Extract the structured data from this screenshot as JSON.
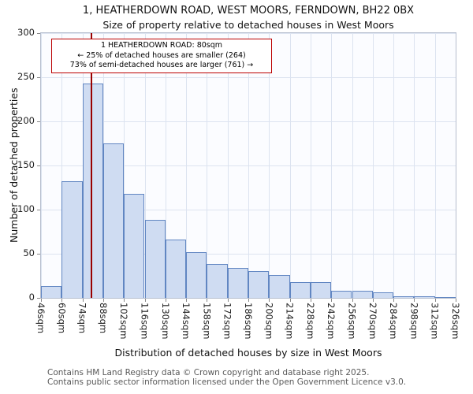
{
  "title": "1, HEATHERDOWN ROAD, WEST MOORS, FERNDOWN, BH22 0BX",
  "subtitle": "Size of property relative to detached houses in West Moors",
  "chart_data": {
    "type": "bar",
    "title": "1, HEATHERDOWN ROAD, WEST MOORS, FERNDOWN, BH22 0BX",
    "subtitle": "Size of property relative to detached houses in West Moors",
    "xlabel": "Distribution of detached houses by size in West Moors",
    "ylabel": "Number of detached properties",
    "xlim": [
      46,
      326
    ],
    "ylim": [
      0,
      300
    ],
    "yticks": [
      0,
      50,
      100,
      150,
      200,
      250,
      300
    ],
    "grid": true,
    "bin_width_sqm": 14,
    "bin_edges": [
      46,
      60,
      74,
      88,
      102,
      116,
      130,
      144,
      158,
      172,
      186,
      200,
      214,
      228,
      242,
      256,
      270,
      284,
      298,
      312,
      326
    ],
    "categories": [
      "46sqm",
      "60sqm",
      "74sqm",
      "88sqm",
      "102sqm",
      "116sqm",
      "130sqm",
      "144sqm",
      "158sqm",
      "172sqm",
      "186sqm",
      "200sqm",
      "214sqm",
      "228sqm",
      "242sqm",
      "256sqm",
      "270sqm",
      "284sqm",
      "298sqm",
      "312sqm",
      "326sqm"
    ],
    "values": [
      13,
      132,
      243,
      175,
      118,
      88,
      66,
      52,
      38,
      34,
      30,
      26,
      18,
      18,
      8,
      8,
      6,
      2,
      2,
      1
    ],
    "marker": {
      "label": "1 HEATHERDOWN ROAD",
      "value_sqm": 80
    },
    "annotation": {
      "lines": [
        "1 HEATHERDOWN ROAD: 80sqm",
        "← 25% of detached houses are smaller (264)",
        "73% of semi-detached houses are larger (761) →"
      ],
      "border_color": "#bb0000"
    },
    "colors": {
      "bar_fill": "#cfdcf2",
      "bar_border": "#6186c2",
      "grid": "#dce3f0",
      "marker_line": "#990000"
    }
  },
  "footer": {
    "line1": "Contains HM Land Registry data © Crown copyright and database right 2025.",
    "line2": "Contains public sector information licensed under the Open Government Licence v3.0."
  }
}
